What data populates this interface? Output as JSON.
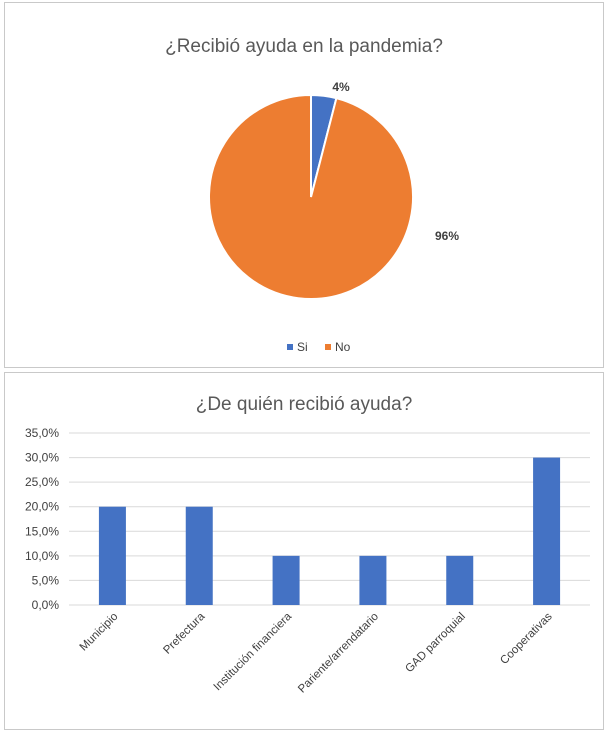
{
  "chart_data": [
    {
      "type": "pie",
      "title": "¿Recibió ayuda en la pandemia?",
      "categories": [
        "Si",
        "No"
      ],
      "values": [
        4,
        96
      ],
      "data_labels": [
        "4%",
        "96%"
      ],
      "colors": [
        "#4472C4",
        "#ED7D31"
      ],
      "legend": [
        "Si",
        "No"
      ],
      "legend_position": "bottom"
    },
    {
      "type": "bar",
      "title": "¿De quién recibió ayuda?",
      "categories": [
        "Municipio",
        "Prefectura",
        "Institución financiera",
        "Pariente/arrendatario",
        "GAD parroquial",
        "Cooperativas"
      ],
      "values": [
        20,
        20,
        10,
        10,
        10,
        30
      ],
      "ylim": [
        0,
        35
      ],
      "ytick_labels": [
        "0,0%",
        "5,0%",
        "10,0%",
        "15,0%",
        "20,0%",
        "25,0%",
        "30,0%",
        "35,0%"
      ],
      "grid": true,
      "color": "#4472C4"
    }
  ]
}
